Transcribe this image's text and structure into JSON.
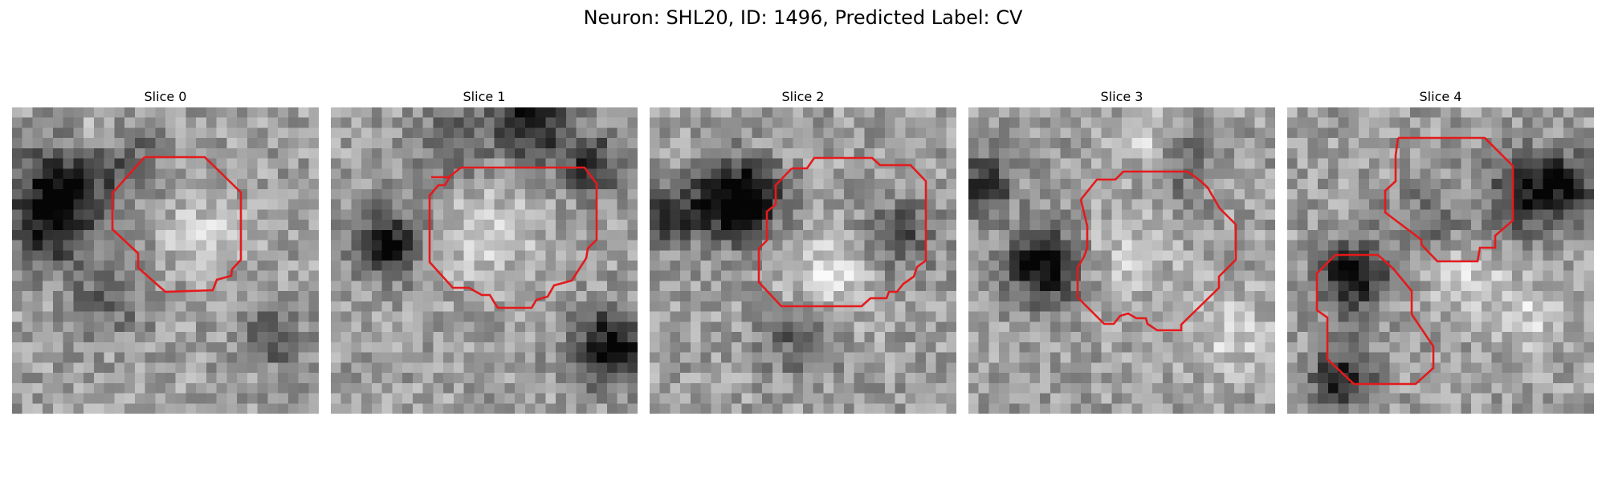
{
  "figure": {
    "title": "Neuron: SHL20, ID: 1496, Predicted Label: CV",
    "outline_color": "#e41a1c",
    "colormap": "gray"
  },
  "panels": [
    {
      "title": "Slice 0"
    },
    {
      "title": "Slice 1"
    },
    {
      "title": "Slice 2"
    },
    {
      "title": "Slice 3"
    },
    {
      "title": "Slice 4"
    }
  ]
}
